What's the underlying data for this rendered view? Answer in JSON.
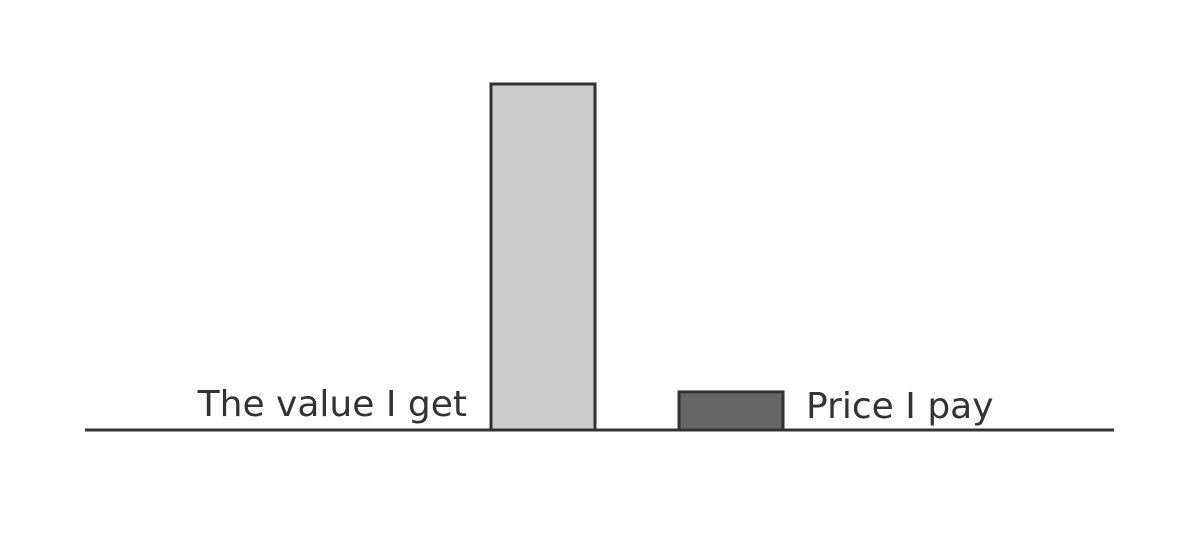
{
  "chart_data": {
    "type": "bar",
    "categories": [
      "The value I get",
      "Price I pay"
    ],
    "values": [
      100,
      11
    ],
    "ylim": [
      0,
      100
    ],
    "grid": false,
    "legend": "none",
    "colors": {
      "value_bar": "#cccccc",
      "price_bar": "#666666",
      "outline": "#333333",
      "baseline": "#333333",
      "text": "#333333"
    }
  }
}
